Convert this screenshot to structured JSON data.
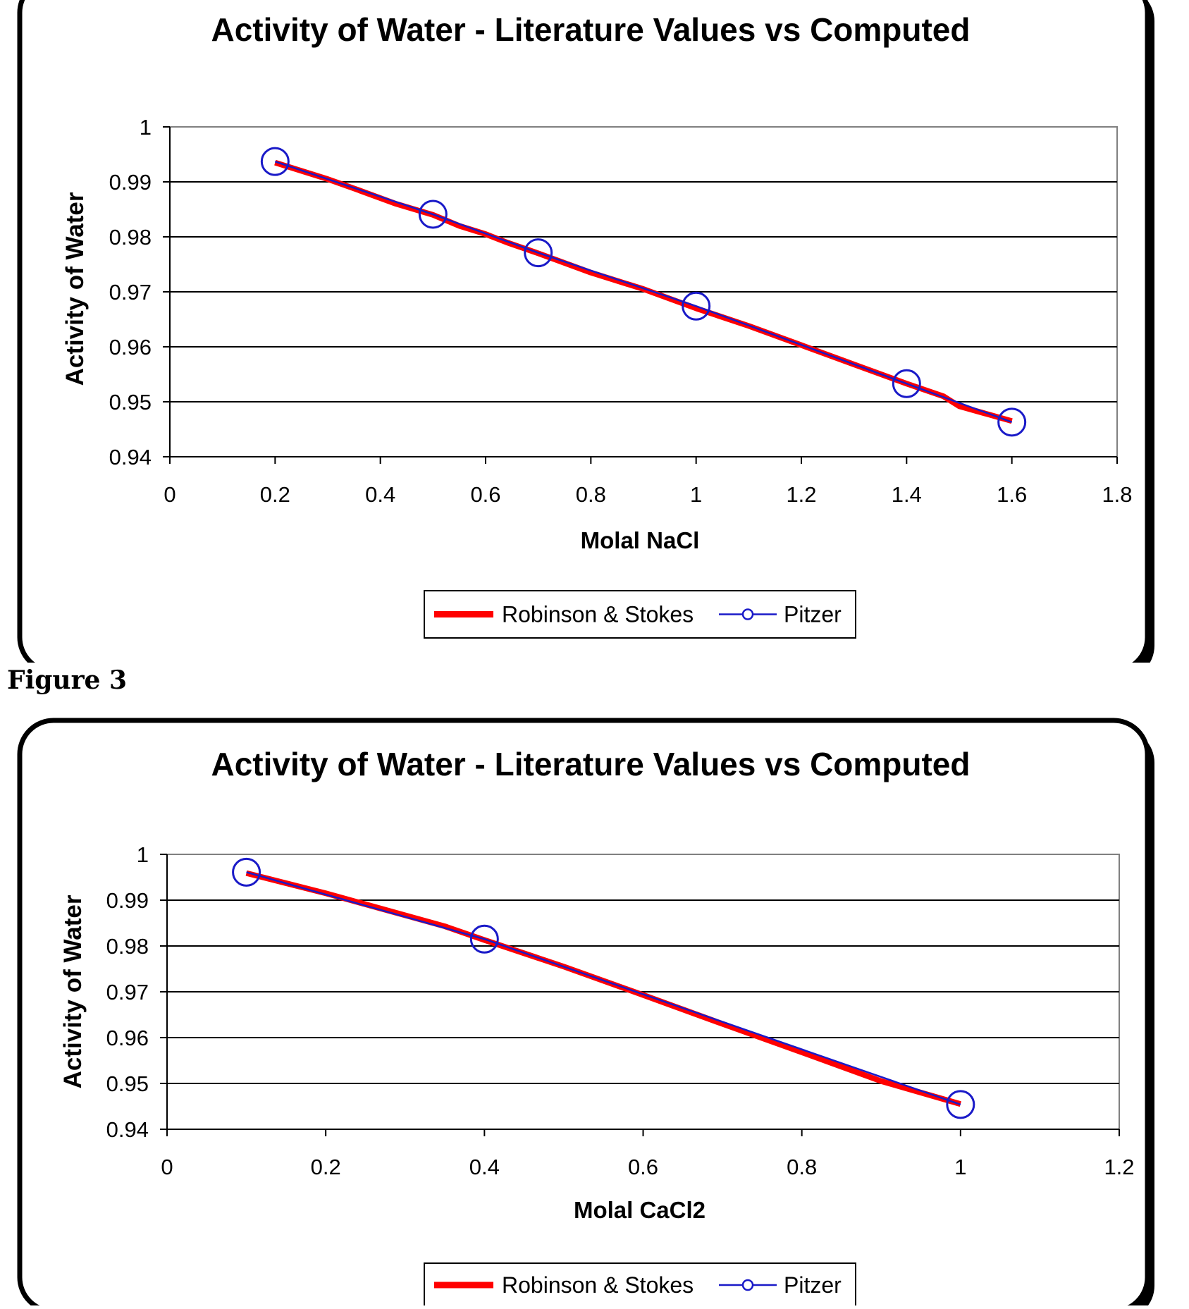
{
  "figure_caption": "Figure 3",
  "chart_data": [
    {
      "type": "line",
      "title": "Activity of Water - Literature Values vs Computed",
      "xlabel": "Molal NaCl",
      "ylabel": "Activity of Water",
      "xlim": [
        0,
        1.8
      ],
      "ylim": [
        0.94,
        1
      ],
      "xticks": [
        0,
        0.2,
        0.4,
        0.6,
        0.8,
        1,
        1.2,
        1.4,
        1.6,
        1.8
      ],
      "xtick_labels": [
        "0",
        "0.2",
        "0.4",
        "0.6",
        "0.8",
        "1",
        "1.2",
        "1.4",
        "1.6",
        "1.8"
      ],
      "yticks": [
        0.94,
        0.95,
        0.96,
        0.97,
        0.98,
        0.99,
        1
      ],
      "ytick_labels": [
        "0.94",
        "0.95",
        "0.96",
        "0.97",
        "0.98",
        "0.99",
        "1"
      ],
      "grid": "horizontal",
      "legend": "bottom-center",
      "series": [
        {
          "name": "Robinson & Stokes",
          "color": "#ff0000",
          "style": "line",
          "x": [
            0.2,
            0.3,
            0.35,
            0.43,
            0.5,
            0.55,
            0.6,
            0.64,
            0.7,
            0.8,
            0.9,
            1.0,
            1.1,
            1.2,
            1.3,
            1.4,
            1.47,
            1.5,
            1.6
          ],
          "y": [
            0.9935,
            0.9905,
            0.9888,
            0.986,
            0.984,
            0.982,
            0.9805,
            0.979,
            0.977,
            0.9735,
            0.9705,
            0.967,
            0.9638,
            0.9603,
            0.9568,
            0.9533,
            0.951,
            0.9492,
            0.9465
          ]
        },
        {
          "name": "Pitzer",
          "color": "#1a1ac8",
          "style": "line-marker",
          "x": [
            0.2,
            0.5,
            0.7,
            1.0,
            1.4,
            1.6
          ],
          "y": [
            0.9937,
            0.9841,
            0.9771,
            0.9674,
            0.9533,
            0.9463
          ]
        }
      ]
    },
    {
      "type": "line",
      "title": "Activity of Water - Literature Values vs Computed",
      "xlabel": "Molal CaCl2",
      "ylabel": "Activity of Water",
      "xlim": [
        0,
        1.2
      ],
      "ylim": [
        0.94,
        1
      ],
      "xticks": [
        0,
        0.2,
        0.4,
        0.6,
        0.8,
        1,
        1.2
      ],
      "xtick_labels": [
        "0",
        "0.2",
        "0.4",
        "0.6",
        "0.8",
        "1",
        "1.2"
      ],
      "yticks": [
        0.94,
        0.95,
        0.96,
        0.97,
        0.98,
        0.99,
        1
      ],
      "ytick_labels": [
        "0.94",
        "0.95",
        "0.96",
        "0.97",
        "0.98",
        "0.99",
        "1"
      ],
      "grid": "horizontal",
      "legend": "bottom-center",
      "series": [
        {
          "name": "Robinson & Stokes",
          "color": "#ff0000",
          "style": "line",
          "x": [
            0.1,
            0.2,
            0.3,
            0.35,
            0.4,
            0.5,
            0.6,
            0.7,
            0.8,
            0.9,
            1.0
          ],
          "y": [
            0.9959,
            0.9915,
            0.9867,
            0.9843,
            0.9813,
            0.9755,
            0.9693,
            0.963,
            0.9568,
            0.9505,
            0.9455
          ]
        },
        {
          "name": "Pitzer",
          "color": "#1a1ac8",
          "style": "line-marker",
          "x": [
            0.1,
            0.4,
            1.0
          ],
          "y": [
            0.9961,
            0.9815,
            0.9454
          ]
        }
      ]
    }
  ]
}
